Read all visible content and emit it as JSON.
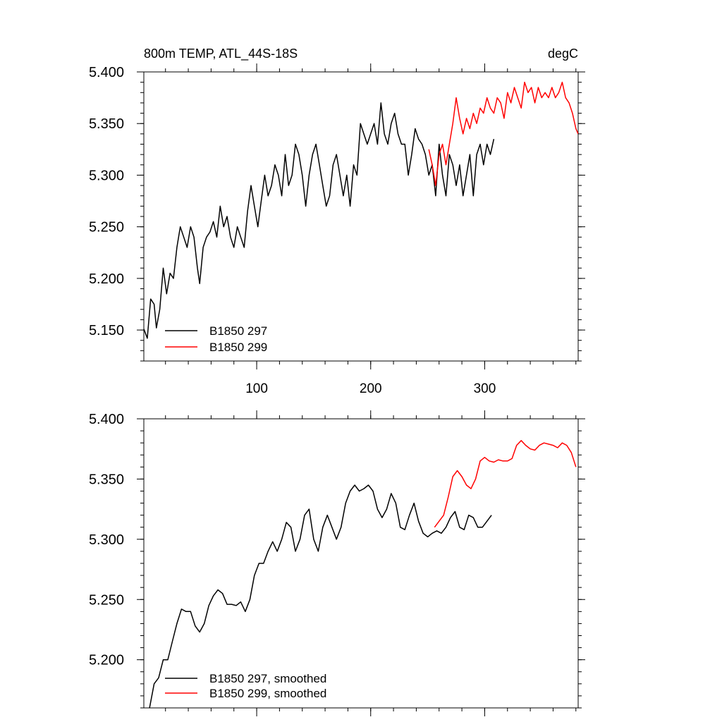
{
  "chart_data": [
    {
      "type": "line",
      "title": "800m TEMP, ATL_44S-18S",
      "units": "degC",
      "xlim": [
        1,
        382
      ],
      "ylim": [
        5.12,
        5.4
      ],
      "xticks": [
        100,
        200,
        300
      ],
      "xtick_labels": [
        "100",
        "200",
        "300"
      ],
      "yticks": [
        5.15,
        5.2,
        5.25,
        5.3,
        5.35,
        5.4
      ],
      "ytick_labels": [
        "5.150",
        "5.200",
        "5.250",
        "5.300",
        "5.350",
        "5.400"
      ],
      "legend": [
        "B1850 297",
        "B1850 299"
      ],
      "series": [
        {
          "name": "B1850 297",
          "color": "#000000",
          "x": [
            1,
            4,
            7,
            10,
            12,
            15,
            18,
            21,
            24,
            27,
            30,
            33,
            36,
            39,
            42,
            45,
            48,
            50,
            53,
            56,
            59,
            62,
            65,
            68,
            71,
            74,
            77,
            80,
            83,
            86,
            89,
            92,
            95,
            98,
            101,
            104,
            107,
            110,
            113,
            116,
            119,
            122,
            125,
            128,
            131,
            134,
            137,
            140,
            143,
            146,
            149,
            152,
            155,
            158,
            161,
            164,
            167,
            170,
            173,
            176,
            179,
            182,
            185,
            188,
            191,
            194,
            197,
            200,
            203,
            206,
            209,
            212,
            215,
            218,
            221,
            224,
            227,
            230,
            233,
            236,
            239,
            242,
            245,
            248,
            251,
            254,
            257,
            260,
            263,
            266,
            269,
            272,
            275,
            278,
            281,
            284,
            287,
            290,
            293,
            296,
            299,
            302,
            305,
            308
          ],
          "values": [
            5.151,
            5.142,
            5.18,
            5.175,
            5.152,
            5.17,
            5.21,
            5.185,
            5.205,
            5.2,
            5.23,
            5.25,
            5.24,
            5.23,
            5.25,
            5.24,
            5.21,
            5.195,
            5.23,
            5.24,
            5.245,
            5.255,
            5.24,
            5.27,
            5.25,
            5.26,
            5.24,
            5.23,
            5.25,
            5.24,
            5.23,
            5.265,
            5.29,
            5.27,
            5.25,
            5.275,
            5.3,
            5.28,
            5.29,
            5.31,
            5.3,
            5.28,
            5.32,
            5.29,
            5.3,
            5.33,
            5.32,
            5.3,
            5.27,
            5.3,
            5.32,
            5.33,
            5.31,
            5.29,
            5.27,
            5.28,
            5.31,
            5.32,
            5.3,
            5.28,
            5.3,
            5.27,
            5.31,
            5.3,
            5.35,
            5.34,
            5.33,
            5.34,
            5.35,
            5.33,
            5.37,
            5.34,
            5.33,
            5.35,
            5.36,
            5.34,
            5.33,
            5.33,
            5.3,
            5.32,
            5.345,
            5.335,
            5.33,
            5.32,
            5.3,
            5.31,
            5.28,
            5.33,
            5.3,
            5.28,
            5.32,
            5.31,
            5.29,
            5.31,
            5.28,
            5.3,
            5.32,
            5.28,
            5.32,
            5.33,
            5.31,
            5.33,
            5.32,
            5.335
          ]
        },
        {
          "name": "B1850 299",
          "color": "#ff0000",
          "x": [
            251,
            254,
            257,
            260,
            263,
            266,
            269,
            272,
            275,
            278,
            281,
            284,
            287,
            290,
            293,
            296,
            299,
            302,
            305,
            308,
            311,
            314,
            317,
            320,
            323,
            326,
            329,
            332,
            335,
            338,
            341,
            344,
            347,
            350,
            353,
            356,
            359,
            362,
            365,
            368,
            371,
            374,
            377,
            380,
            382
          ],
          "values": [
            5.325,
            5.31,
            5.29,
            5.32,
            5.33,
            5.31,
            5.33,
            5.35,
            5.375,
            5.355,
            5.34,
            5.355,
            5.345,
            5.36,
            5.35,
            5.365,
            5.36,
            5.375,
            5.365,
            5.36,
            5.375,
            5.37,
            5.355,
            5.38,
            5.37,
            5.385,
            5.375,
            5.365,
            5.39,
            5.38,
            5.385,
            5.37,
            5.385,
            5.375,
            5.38,
            5.375,
            5.385,
            5.375,
            5.38,
            5.39,
            5.375,
            5.37,
            5.36,
            5.345,
            5.34
          ]
        }
      ]
    },
    {
      "type": "line",
      "title": "",
      "xlim": [
        1,
        382
      ],
      "ylim": [
        5.16,
        5.4
      ],
      "xticks": [
        100,
        200,
        300
      ],
      "yticks": [
        5.2,
        5.25,
        5.3,
        5.35,
        5.4
      ],
      "ytick_labels": [
        "5.200",
        "5.250",
        "5.300",
        "5.350",
        "5.400"
      ],
      "legend": [
        "B1850 297, smoothed",
        "B1850 299, smoothed"
      ],
      "series": [
        {
          "name": "B1850 297, smoothed",
          "color": "#000000",
          "x": [
            6,
            10,
            14,
            18,
            22,
            26,
            30,
            34,
            38,
            42,
            46,
            50,
            54,
            58,
            62,
            66,
            70,
            74,
            78,
            82,
            86,
            90,
            94,
            98,
            102,
            106,
            110,
            114,
            118,
            122,
            126,
            130,
            134,
            138,
            142,
            146,
            150,
            154,
            158,
            162,
            166,
            170,
            174,
            178,
            182,
            186,
            190,
            194,
            198,
            202,
            206,
            210,
            214,
            218,
            222,
            226,
            230,
            234,
            238,
            242,
            246,
            250,
            254,
            258,
            262,
            266,
            270,
            274,
            278,
            282,
            286,
            290,
            294,
            298,
            302,
            306
          ],
          "values": [
            5.16,
            5.18,
            5.185,
            5.2,
            5.2,
            5.215,
            5.23,
            5.242,
            5.24,
            5.24,
            5.228,
            5.223,
            5.23,
            5.245,
            5.253,
            5.258,
            5.255,
            5.246,
            5.246,
            5.245,
            5.248,
            5.24,
            5.25,
            5.27,
            5.28,
            5.28,
            5.29,
            5.298,
            5.29,
            5.3,
            5.314,
            5.31,
            5.29,
            5.3,
            5.32,
            5.325,
            5.3,
            5.29,
            5.31,
            5.32,
            5.31,
            5.3,
            5.31,
            5.33,
            5.34,
            5.345,
            5.34,
            5.342,
            5.345,
            5.34,
            5.325,
            5.318,
            5.325,
            5.338,
            5.33,
            5.31,
            5.308,
            5.32,
            5.33,
            5.315,
            5.305,
            5.302,
            5.305,
            5.307,
            5.305,
            5.31,
            5.318,
            5.323,
            5.31,
            5.308,
            5.32,
            5.318,
            5.31,
            5.31,
            5.315,
            5.32
          ]
        },
        {
          "name": "B1850 299, smoothed",
          "color": "#ff0000",
          "x": [
            256,
            260,
            264,
            268,
            272,
            276,
            280,
            284,
            288,
            292,
            296,
            300,
            304,
            308,
            312,
            316,
            320,
            324,
            328,
            332,
            336,
            340,
            344,
            348,
            352,
            356,
            360,
            364,
            368,
            372,
            376,
            380
          ],
          "values": [
            5.31,
            5.315,
            5.32,
            5.335,
            5.352,
            5.357,
            5.352,
            5.345,
            5.342,
            5.35,
            5.365,
            5.368,
            5.365,
            5.364,
            5.366,
            5.365,
            5.365,
            5.367,
            5.378,
            5.382,
            5.378,
            5.375,
            5.374,
            5.378,
            5.38,
            5.379,
            5.378,
            5.376,
            5.38,
            5.378,
            5.372,
            5.36
          ]
        }
      ]
    }
  ]
}
